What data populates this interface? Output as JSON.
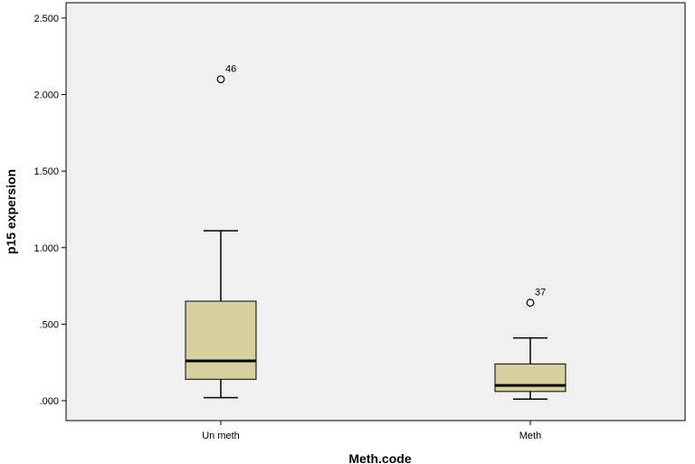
{
  "chart_data": {
    "type": "box",
    "xlabel": "Meth.code",
    "ylabel": "p15 expersion",
    "ylim": [
      -0.13,
      2.6
    ],
    "yticks": [
      {
        "value": 0.0,
        "label": ".000"
      },
      {
        "value": 0.5,
        "label": ".500"
      },
      {
        "value": 1.0,
        "label": "1.000"
      },
      {
        "value": 1.5,
        "label": "1.500"
      },
      {
        "value": 2.0,
        "label": "2.000"
      },
      {
        "value": 2.5,
        "label": "2.500"
      }
    ],
    "grid": false,
    "background": "#f0f0f0",
    "box_color": "#d6d09f",
    "categories": [
      "Un meth",
      "Meth"
    ],
    "boxes": [
      {
        "category": "Un meth",
        "whisker_low": 0.02,
        "q1": 0.14,
        "median": 0.26,
        "q3": 0.65,
        "whisker_high": 1.11,
        "outliers": [
          {
            "value": 2.1,
            "label": "46"
          }
        ]
      },
      {
        "category": "Meth",
        "whisker_low": 0.01,
        "q1": 0.06,
        "median": 0.1,
        "q3": 0.24,
        "whisker_high": 0.41,
        "outliers": [
          {
            "value": 0.64,
            "label": "37"
          }
        ]
      }
    ]
  }
}
